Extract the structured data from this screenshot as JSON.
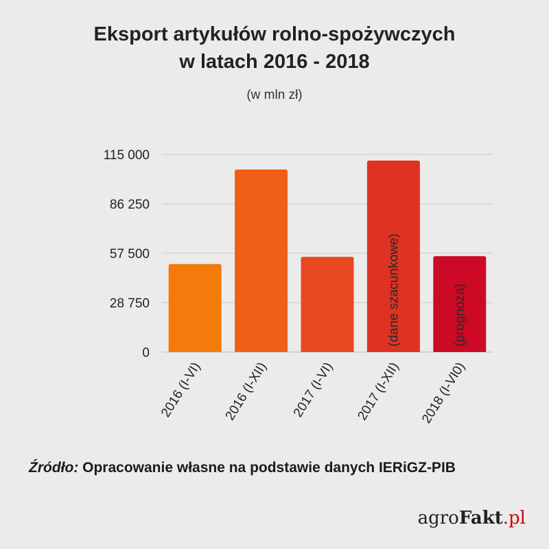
{
  "title": {
    "line1": "Eksport artykułów rolno-spożywczych",
    "line2": "w latach 2016 - 2018"
  },
  "subtitle": "(w mln zł)",
  "chart_data": {
    "type": "bar",
    "categories": [
      "2016 (I-VI)",
      "2016 (I-XII)",
      "2017 (I-VI)",
      "2017 (I-XII)",
      "2018 (I-VI0)"
    ],
    "values": [
      51200,
      106200,
      55400,
      111400,
      55800
    ],
    "colors": [
      "#f47a0c",
      "#f05f17",
      "#e8481f",
      "#df3222",
      "#cc0a26"
    ],
    "bar_labels": [
      "",
      "",
      "",
      "(dane szacunkowe)",
      "(prognoza)"
    ],
    "yticks": [
      0,
      28750,
      57500,
      86250,
      115000
    ],
    "ytick_labels": [
      "0",
      "28 750",
      "57 500",
      "86 250",
      "115 000"
    ],
    "ylim": [
      0,
      115000
    ],
    "grid": true
  },
  "source": {
    "label": "Źródło:",
    "text": " Opracowanie własne na podstawie danych IERiGZ-PIB"
  },
  "logo": {
    "part1": "agro",
    "part2": "Fakt",
    "part3": ".pl"
  }
}
